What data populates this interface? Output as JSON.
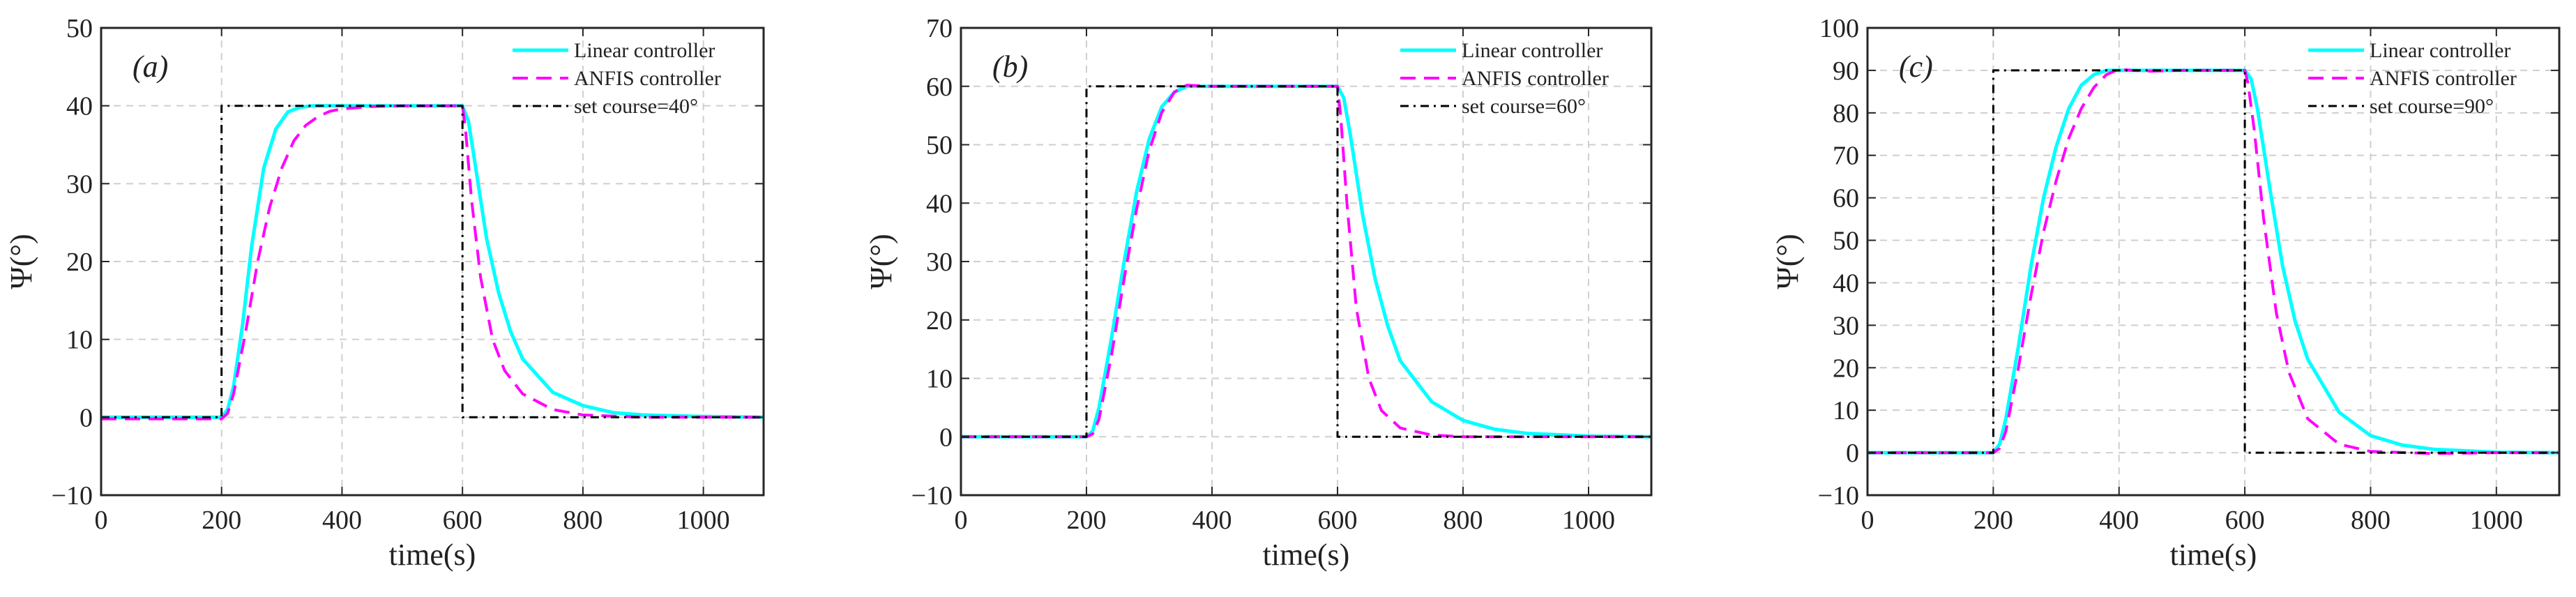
{
  "chart_data": [
    {
      "type": "line",
      "panel_label": "(a)",
      "xlabel": "time(s)",
      "ylabel": "Ψ(°)",
      "xlim": [
        0,
        1100
      ],
      "ylim": [
        -10,
        50
      ],
      "xticks": [
        0,
        200,
        400,
        600,
        800,
        1000
      ],
      "yticks": [
        -10,
        0,
        10,
        20,
        30,
        40,
        50
      ],
      "grid": true,
      "legend_position": "top-right",
      "series": [
        {
          "name": "Linear controller",
          "color": "#00ffff",
          "style": "solid",
          "x": [
            0,
            200,
            210,
            220,
            235,
            250,
            270,
            290,
            310,
            330,
            350,
            400,
            500,
            600,
            610,
            620,
            640,
            660,
            680,
            700,
            750,
            800,
            850,
            900,
            1000,
            1100
          ],
          "y": [
            0,
            0,
            1,
            4,
            12,
            22,
            32,
            37,
            39.2,
            39.8,
            40,
            40,
            40,
            40,
            38,
            33,
            23,
            16,
            11,
            7.5,
            3.2,
            1.5,
            0.6,
            0.3,
            0.1,
            0
          ]
        },
        {
          "name": "ANFIS controller",
          "color": "#ff00ff",
          "style": "dashed",
          "x": [
            0,
            200,
            210,
            220,
            240,
            260,
            280,
            300,
            320,
            340,
            360,
            380,
            400,
            450,
            500,
            600,
            605,
            615,
            630,
            650,
            670,
            700,
            750,
            800,
            900,
            1000,
            1100
          ],
          "y": [
            -0.2,
            -0.2,
            0.5,
            3,
            11,
            20,
            27,
            32,
            35.5,
            37.5,
            38.6,
            39.3,
            39.6,
            39.9,
            40,
            40,
            37,
            28,
            18,
            10,
            6,
            3,
            1,
            0.3,
            0,
            0,
            0
          ]
        },
        {
          "name": "set course=40°",
          "color": "#000000",
          "style": "dashdot",
          "x": [
            0,
            200,
            200,
            600,
            600,
            1100
          ],
          "y": [
            0,
            0,
            40,
            40,
            0,
            0
          ]
        }
      ]
    },
    {
      "type": "line",
      "panel_label": "(b)",
      "xlabel": "time(s)",
      "ylabel": "Ψ(°)",
      "xlim": [
        0,
        1100
      ],
      "ylim": [
        -10,
        70
      ],
      "xticks": [
        0,
        200,
        400,
        600,
        800,
        1000
      ],
      "yticks": [
        -10,
        0,
        10,
        20,
        30,
        40,
        50,
        60,
        70
      ],
      "grid": true,
      "legend_position": "top-right",
      "series": [
        {
          "name": "Linear controller",
          "color": "#00ffff",
          "style": "solid",
          "x": [
            0,
            200,
            210,
            220,
            240,
            260,
            280,
            300,
            320,
            340,
            360,
            400,
            500,
            600,
            610,
            620,
            640,
            660,
            680,
            700,
            750,
            800,
            850,
            900,
            1000,
            1100
          ],
          "y": [
            0,
            0,
            1,
            5,
            17,
            30,
            42,
            51,
            56.5,
            59,
            60,
            60,
            60,
            60,
            58,
            52,
            38,
            27,
            19,
            13,
            6,
            2.8,
            1.3,
            0.6,
            0.1,
            0
          ]
        },
        {
          "name": "ANFIS controller",
          "color": "#ff00ff",
          "style": "dashed",
          "x": [
            0,
            200,
            210,
            220,
            240,
            260,
            280,
            300,
            320,
            340,
            360,
            400,
            500,
            600,
            605,
            615,
            630,
            650,
            670,
            700,
            750,
            800,
            900,
            1100
          ],
          "y": [
            0,
            0,
            0.5,
            3,
            14,
            27,
            39,
            49,
            55.5,
            59,
            60.2,
            60,
            60,
            60,
            55,
            40,
            22,
            10,
            4.5,
            1.5,
            0.3,
            0,
            0,
            0
          ]
        },
        {
          "name": "set course=60°",
          "color": "#000000",
          "style": "dashdot",
          "x": [
            0,
            200,
            200,
            600,
            600,
            1100
          ],
          "y": [
            0,
            0,
            60,
            60,
            0,
            0
          ]
        }
      ]
    },
    {
      "type": "line",
      "panel_label": "(c)",
      "xlabel": "time(s)",
      "ylabel": "Ψ(°)",
      "xlim": [
        0,
        1100
      ],
      "ylim": [
        -10,
        100
      ],
      "xticks": [
        0,
        200,
        400,
        600,
        800,
        1000
      ],
      "yticks": [
        -10,
        0,
        10,
        20,
        30,
        40,
        50,
        60,
        70,
        80,
        90,
        100
      ],
      "grid": true,
      "legend_position": "top-right",
      "series": [
        {
          "name": "Linear controller",
          "color": "#00ffff",
          "style": "solid",
          "x": [
            0,
            200,
            210,
            220,
            240,
            260,
            280,
            300,
            320,
            340,
            360,
            380,
            400,
            500,
            600,
            610,
            620,
            640,
            660,
            680,
            700,
            750,
            800,
            850,
            900,
            1000,
            1100
          ],
          "y": [
            0,
            0,
            2,
            8,
            25,
            44,
            60,
            72,
            81,
            86.5,
            89,
            90,
            90,
            90,
            90,
            88,
            81,
            62,
            44,
            31,
            22,
            9.5,
            4,
            1.8,
            0.8,
            0.1,
            0
          ]
        },
        {
          "name": "ANFIS controller",
          "color": "#ff00ff",
          "style": "dashed",
          "x": [
            0,
            200,
            210,
            220,
            240,
            260,
            280,
            300,
            320,
            340,
            360,
            380,
            400,
            420,
            450,
            500,
            600,
            605,
            615,
            630,
            650,
            670,
            700,
            750,
            800,
            900,
            1000,
            1100
          ],
          "y": [
            0,
            0,
            1,
            5,
            20,
            37,
            52,
            64,
            74,
            81,
            86,
            89,
            90.3,
            90,
            89.8,
            90,
            90,
            87,
            76,
            55,
            33,
            19,
            8,
            2,
            0.3,
            -0.2,
            0,
            0
          ]
        },
        {
          "name": "set course=90°",
          "color": "#000000",
          "style": "dashdot",
          "x": [
            0,
            200,
            200,
            600,
            600,
            1100
          ],
          "y": [
            0,
            0,
            90,
            90,
            0,
            0
          ]
        }
      ]
    }
  ]
}
